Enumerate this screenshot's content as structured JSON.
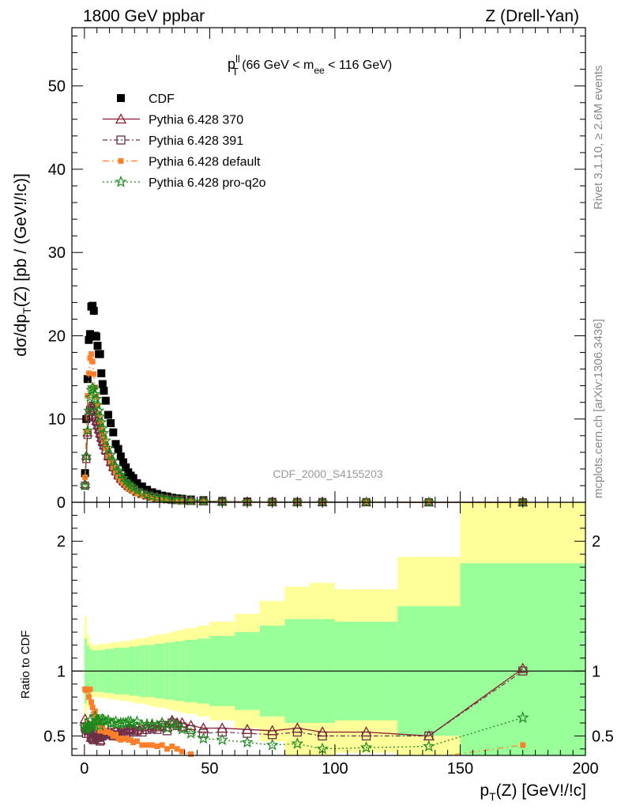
{
  "header": {
    "left": "1800 GeV ppbar",
    "right": "Z (Drell-Yan)"
  },
  "side_labels": {
    "rivet": "Rivet 3.1.10, ≥ 2.6M events",
    "mcplots": "mcplots.cern.ch [arXiv:1306.3436]"
  },
  "chart_data": [
    {
      "type": "scatter",
      "panel": "main",
      "title_main": "p",
      "title_sup": "ll",
      "title_sub": "T",
      "title_rest": " (66 GeV < m",
      "title_sub2": "ee",
      "title_end": " < 116 GeV)",
      "ylabel": "dσ/dp_T(Z) [pb / (GeV!/!c)]",
      "watermark": "CDF_2000_S4155203",
      "xlim": [
        -5,
        200
      ],
      "ylim": [
        0,
        57
      ],
      "x_ticks": [
        0,
        50,
        100,
        150,
        200
      ],
      "y_ticks": [
        0,
        10,
        20,
        30,
        40,
        50
      ],
      "legend_position": "top-left",
      "series": [
        {
          "name": "CDF",
          "color": "#000000",
          "marker": "square-filled",
          "x": [
            0.25,
            0.75,
            1.25,
            1.75,
            2.25,
            2.75,
            3.25,
            3.75,
            4.25,
            4.75,
            5.25,
            5.75,
            6.25,
            6.75,
            7.25,
            7.75,
            8.5,
            9.5,
            10.5,
            11.5,
            12.5,
            13.5,
            14.5,
            15.5,
            16.5,
            17.5,
            18.5,
            19.5,
            21,
            23,
            25,
            27,
            29,
            31,
            33,
            35,
            37,
            39,
            42.5,
            47.5,
            55,
            65,
            75,
            85,
            95,
            112.5,
            137.5,
            175
          ],
          "y": [
            3.5,
            10,
            14.8,
            19.5,
            20.2,
            23.5,
            23.6,
            23.0,
            20.0,
            19.9,
            18.8,
            17.8,
            17.8,
            15.5,
            14.2,
            13.4,
            12.2,
            10.5,
            9.5,
            8.4,
            7.0,
            6.4,
            5.5,
            4.8,
            4.2,
            3.6,
            3.2,
            2.9,
            2.3,
            1.9,
            1.5,
            1.2,
            1.0,
            0.8,
            0.7,
            0.55,
            0.48,
            0.42,
            0.33,
            0.25,
            0.16,
            0.1,
            0.065,
            0.045,
            0.03,
            0.017,
            0.006,
            0.0015
          ]
        },
        {
          "name": "Pythia 6.428 370",
          "color": "#8b1a2b",
          "marker": "triangle-open",
          "x": [
            0.25,
            0.75,
            1.25,
            1.75,
            2.25,
            2.75,
            3.25,
            3.75,
            4.25,
            4.75,
            5.25,
            5.75,
            6.25,
            6.75,
            7.25,
            7.75,
            8.5,
            9.5,
            10.5,
            11.5,
            12.5,
            13.5,
            14.5,
            15.5,
            16.5,
            17.5,
            18.5,
            19.5,
            21,
            23,
            25,
            27,
            29,
            31,
            33,
            35,
            37,
            39,
            42.5,
            47.5,
            55,
            65,
            75,
            85,
            95,
            112.5,
            137.5,
            175
          ],
          "y": [
            2.2,
            5.6,
            8.4,
            10.5,
            11.3,
            11.6,
            11.5,
            11.0,
            10.3,
            9.8,
            9.3,
            8.8,
            8.3,
            7.8,
            7.3,
            6.9,
            6.3,
            5.6,
            4.9,
            4.3,
            3.8,
            3.3,
            2.9,
            2.6,
            2.3,
            2.0,
            1.8,
            1.6,
            1.3,
            1.05,
            0.85,
            0.7,
            0.57,
            0.48,
            0.4,
            0.34,
            0.29,
            0.25,
            0.19,
            0.14,
            0.09,
            0.055,
            0.035,
            0.025,
            0.016,
            0.009,
            0.003,
            0.0015
          ]
        },
        {
          "name": "Pythia 6.428 391",
          "color": "#6b3048",
          "marker": "square-open",
          "x": [
            0.25,
            0.75,
            1.25,
            1.75,
            2.25,
            2.75,
            3.25,
            3.75,
            4.25,
            4.75,
            5.25,
            5.75,
            6.25,
            6.75,
            7.25,
            7.75,
            8.5,
            9.5,
            10.5,
            11.5,
            12.5,
            13.5,
            14.5,
            15.5,
            16.5,
            17.5,
            18.5,
            19.5,
            21,
            23,
            25,
            27,
            29,
            31,
            33,
            35,
            37,
            39,
            42.5,
            47.5,
            55,
            65,
            75,
            85,
            95,
            112.5,
            137.5,
            175
          ],
          "y": [
            2.0,
            5.2,
            8.1,
            10.2,
            11.1,
            11.5,
            11.3,
            10.9,
            10.2,
            9.7,
            9.2,
            8.7,
            8.2,
            7.7,
            7.2,
            6.8,
            6.2,
            5.5,
            4.8,
            4.2,
            3.7,
            3.2,
            2.8,
            2.5,
            2.2,
            1.95,
            1.75,
            1.55,
            1.25,
            1.0,
            0.82,
            0.67,
            0.55,
            0.46,
            0.38,
            0.33,
            0.28,
            0.24,
            0.18,
            0.13,
            0.085,
            0.052,
            0.033,
            0.024,
            0.015,
            0.0085,
            0.003,
            0.0015
          ]
        },
        {
          "name": "Pythia 6.428 default",
          "color": "#ff7f2a",
          "marker": "square-filled",
          "x": [
            0.25,
            0.75,
            1.25,
            1.75,
            2.25,
            2.75,
            3.25,
            3.75,
            4.25,
            4.75,
            5.25,
            5.75,
            6.25,
            6.75,
            7.25,
            7.75,
            8.5,
            9.5,
            10.5,
            11.5,
            12.5,
            13.5,
            14.5,
            15.5,
            16.5,
            17.5,
            18.5,
            19.5,
            21,
            23,
            25,
            27,
            29,
            31,
            33,
            35,
            37,
            39,
            42.5,
            47.5,
            55,
            65,
            75,
            85,
            95,
            112.5,
            137.5,
            175
          ],
          "y": [
            3.0,
            8.5,
            12.8,
            15.5,
            17.3,
            17.8,
            16.9,
            15.4,
            13.8,
            12.7,
            11.6,
            10.6,
            9.7,
            8.8,
            8.0,
            7.3,
            6.5,
            5.6,
            4.9,
            4.2,
            3.6,
            3.1,
            2.6,
            2.3,
            2.0,
            1.7,
            1.5,
            1.3,
            1.05,
            0.82,
            0.65,
            0.52,
            0.42,
            0.34,
            0.28,
            0.23,
            0.19,
            0.16,
            0.12,
            0.085,
            0.05,
            0.03,
            0.02,
            0.015,
            0.009,
            0.005,
            0.002,
            0.0006
          ]
        },
        {
          "name": "Pythia 6.428 pro-q2o",
          "color": "#1a8a1a",
          "marker": "star-open",
          "x": [
            0.25,
            0.75,
            1.25,
            1.75,
            2.25,
            2.75,
            3.25,
            3.75,
            4.25,
            4.75,
            5.25,
            5.75,
            6.25,
            6.75,
            7.25,
            7.75,
            8.5,
            9.5,
            10.5,
            11.5,
            12.5,
            13.5,
            14.5,
            15.5,
            16.5,
            17.5,
            18.5,
            19.5,
            21,
            23,
            25,
            27,
            29,
            31,
            33,
            35,
            37,
            39,
            42.5,
            47.5,
            55,
            65,
            75,
            85,
            95,
            112.5,
            137.5,
            175
          ],
          "y": [
            2.0,
            5.5,
            8.6,
            11.0,
            12.6,
            13.5,
            13.8,
            13.6,
            13.0,
            12.4,
            11.7,
            11.0,
            10.3,
            9.6,
            8.9,
            8.3,
            7.4,
            6.5,
            5.7,
            5.0,
            4.3,
            3.8,
            3.3,
            2.9,
            2.5,
            2.2,
            1.95,
            1.7,
            1.4,
            1.1,
            0.88,
            0.71,
            0.58,
            0.48,
            0.39,
            0.33,
            0.28,
            0.23,
            0.17,
            0.12,
            0.075,
            0.045,
            0.028,
            0.02,
            0.012,
            0.007,
            0.0025,
            0.001
          ]
        }
      ]
    },
    {
      "type": "line",
      "panel": "ratio",
      "ylabel": "Ratio to CDF",
      "xlabel": "p_T(Z) [GeV!/!c]",
      "xlim": [
        -5,
        200
      ],
      "ylim": [
        0.35,
        2.3
      ],
      "x_ticks": [
        0,
        50,
        100,
        150,
        200
      ],
      "y_ticks": [
        0.5,
        1,
        2
      ],
      "band_edges": [
        0,
        1,
        2,
        3,
        4,
        5,
        6,
        8,
        10,
        12,
        14,
        16,
        18,
        20,
        22,
        24,
        26,
        28,
        30,
        32,
        34,
        36,
        38,
        40,
        45,
        50,
        60,
        70,
        80,
        90,
        100,
        125,
        150,
        200
      ],
      "band_green_up": [
        1.25,
        1.2,
        1.17,
        1.16,
        1.16,
        1.16,
        1.16,
        1.17,
        1.17,
        1.18,
        1.18,
        1.18,
        1.19,
        1.19,
        1.2,
        1.2,
        1.2,
        1.21,
        1.21,
        1.22,
        1.22,
        1.23,
        1.23,
        1.24,
        1.25,
        1.27,
        1.3,
        1.35,
        1.4,
        1.4,
        1.38,
        1.5,
        1.83
      ],
      "band_yellow_up": [
        1.42,
        1.28,
        1.22,
        1.2,
        1.2,
        1.2,
        1.21,
        1.21,
        1.22,
        1.22,
        1.23,
        1.23,
        1.24,
        1.25,
        1.25,
        1.26,
        1.27,
        1.28,
        1.28,
        1.29,
        1.3,
        1.31,
        1.32,
        1.33,
        1.35,
        1.38,
        1.44,
        1.54,
        1.65,
        1.68,
        1.63,
        1.88,
        2.3
      ],
      "series": [
        {
          "name": "Pythia 6.428 370",
          "x": [
            0.25,
            0.75,
            1.25,
            1.75,
            2.25,
            2.75,
            3.25,
            3.75,
            4.25,
            4.75,
            5.25,
            5.75,
            6.25,
            6.75,
            7.25,
            7.75,
            8.5,
            9.5,
            10.5,
            11.5,
            12.5,
            13.5,
            14.5,
            15.5,
            16.5,
            17.5,
            18.5,
            19.5,
            21,
            23,
            25,
            27,
            29,
            31,
            33,
            35,
            37,
            39,
            42.5,
            47.5,
            55,
            65,
            75,
            85,
            95,
            112.5,
            137.5,
            175
          ],
          "y": [
            0.63,
            0.56,
            0.57,
            0.54,
            0.56,
            0.49,
            0.49,
            0.48,
            0.52,
            0.49,
            0.5,
            0.49,
            0.47,
            0.5,
            0.51,
            0.51,
            0.52,
            0.53,
            0.52,
            0.51,
            0.54,
            0.52,
            0.53,
            0.54,
            0.55,
            0.56,
            0.56,
            0.55,
            0.57,
            0.55,
            0.57,
            0.58,
            0.57,
            0.6,
            0.57,
            0.62,
            0.6,
            0.6,
            0.58,
            0.56,
            0.56,
            0.55,
            0.54,
            0.56,
            0.53,
            0.53,
            0.5,
            1.02
          ]
        },
        {
          "name": "Pythia 6.428 391",
          "x": [
            0.25,
            0.75,
            1.25,
            1.75,
            2.25,
            2.75,
            3.25,
            3.75,
            4.25,
            4.75,
            5.25,
            5.75,
            6.25,
            6.75,
            7.25,
            7.75,
            8.5,
            9.5,
            10.5,
            11.5,
            12.5,
            13.5,
            14.5,
            15.5,
            16.5,
            17.5,
            18.5,
            19.5,
            21,
            23,
            25,
            27,
            29,
            31,
            33,
            35,
            37,
            39,
            42.5,
            47.5,
            55,
            65,
            75,
            85,
            95,
            112.5,
            137.5,
            175
          ],
          "y": [
            0.57,
            0.52,
            0.55,
            0.52,
            0.55,
            0.49,
            0.48,
            0.47,
            0.51,
            0.49,
            0.49,
            0.49,
            0.46,
            0.5,
            0.51,
            0.51,
            0.51,
            0.52,
            0.51,
            0.5,
            0.53,
            0.5,
            0.51,
            0.52,
            0.52,
            0.54,
            0.55,
            0.53,
            0.54,
            0.53,
            0.55,
            0.56,
            0.55,
            0.58,
            0.54,
            0.6,
            0.58,
            0.57,
            0.55,
            0.52,
            0.53,
            0.52,
            0.51,
            0.53,
            0.5,
            0.5,
            0.5,
            1.0
          ]
        },
        {
          "name": "Pythia 6.428 default",
          "x": [
            0.25,
            0.75,
            1.25,
            1.75,
            2.25,
            2.75,
            3.25,
            3.75,
            4.25,
            4.75,
            5.25,
            5.75,
            6.25,
            6.75,
            7.25,
            7.75,
            8.5,
            9.5,
            10.5,
            11.5,
            12.5,
            13.5,
            14.5,
            15.5,
            16.5,
            17.5,
            18.5,
            19.5,
            21,
            23,
            25,
            27,
            29,
            31,
            33,
            35,
            37,
            39,
            42.5,
            47.5,
            55,
            65,
            75,
            85,
            95,
            112.5,
            137.5,
            175
          ],
          "y": [
            0.86,
            0.85,
            0.86,
            0.8,
            0.86,
            0.76,
            0.72,
            0.67,
            0.69,
            0.64,
            0.62,
            0.6,
            0.54,
            0.57,
            0.56,
            0.54,
            0.53,
            0.53,
            0.52,
            0.5,
            0.51,
            0.48,
            0.47,
            0.48,
            0.48,
            0.47,
            0.47,
            0.45,
            0.46,
            0.43,
            0.43,
            0.43,
            0.42,
            0.43,
            0.4,
            0.42,
            0.4,
            0.38,
            0.36,
            0.34,
            0.31,
            0.3,
            0.31,
            0.33,
            0.3,
            0.29,
            0.33,
            0.43
          ]
        },
        {
          "name": "Pythia 6.428 pro-q2o",
          "x": [
            0.25,
            0.75,
            1.25,
            1.75,
            2.25,
            2.75,
            3.25,
            3.75,
            4.25,
            4.75,
            5.25,
            5.75,
            6.25,
            6.75,
            7.25,
            7.75,
            8.5,
            9.5,
            10.5,
            11.5,
            12.5,
            13.5,
            14.5,
            15.5,
            16.5,
            17.5,
            18.5,
            19.5,
            21,
            23,
            25,
            27,
            29,
            31,
            33,
            35,
            37,
            39,
            42.5,
            47.5,
            55,
            65,
            75,
            85,
            95,
            112.5,
            137.5,
            175
          ],
          "y": [
            0.57,
            0.55,
            0.58,
            0.56,
            0.62,
            0.57,
            0.58,
            0.59,
            0.65,
            0.62,
            0.62,
            0.62,
            0.58,
            0.62,
            0.63,
            0.62,
            0.61,
            0.62,
            0.6,
            0.6,
            0.61,
            0.59,
            0.6,
            0.6,
            0.6,
            0.61,
            0.61,
            0.59,
            0.61,
            0.58,
            0.59,
            0.59,
            0.58,
            0.6,
            0.56,
            0.6,
            0.58,
            0.55,
            0.52,
            0.48,
            0.47,
            0.45,
            0.43,
            0.44,
            0.4,
            0.41,
            0.42,
            0.64
          ]
        }
      ]
    }
  ]
}
